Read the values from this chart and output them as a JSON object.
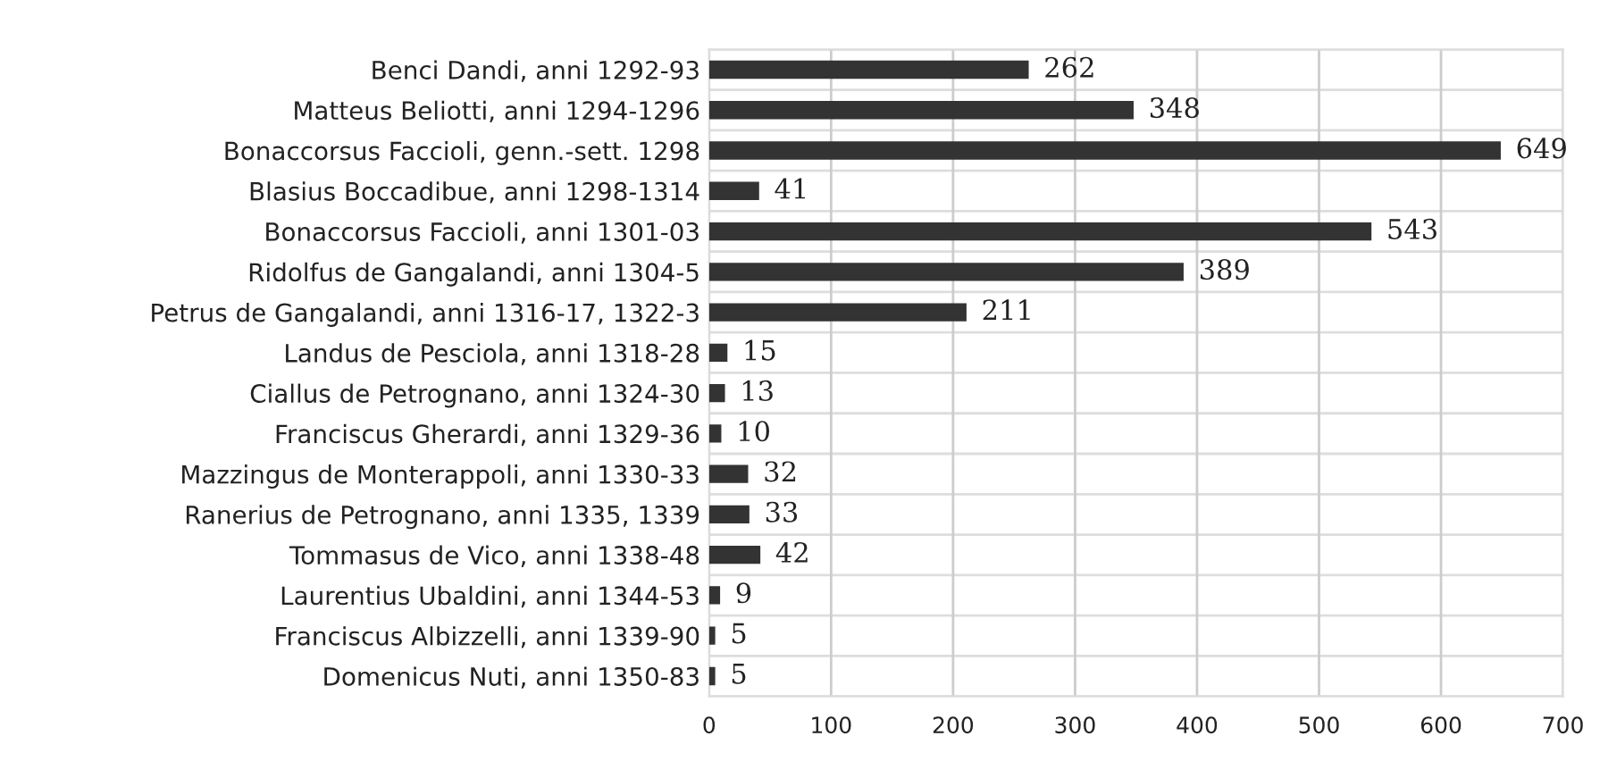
{
  "chart_data": {
    "type": "bar",
    "orientation": "horizontal",
    "categories": [
      "Benci Dandi, anni 1292-93",
      "Matteus Beliotti, anni 1294-1296",
      "Bonaccorsus Faccioli, genn.-sett. 1298",
      "Blasius Boccadibue, anni 1298-1314",
      "Bonaccorsus Faccioli, anni 1301-03",
      "Ridolfus de Gangalandi, anni 1304-5",
      "Petrus de Gangalandi, anni 1316-17, 1322-3",
      "Landus de Pesciola, anni 1318-28",
      "Ciallus de Petrognano, anni 1324-30",
      "Franciscus Gherardi, anni 1329-36",
      "Mazzingus de Monterappoli, anni 1330-33",
      "Ranerius de Petrognano, anni 1335, 1339",
      "Tommasus de Vico, anni 1338-48",
      "Laurentius Ubaldini, anni 1344-53",
      "Franciscus Albizzelli, anni 1339-90",
      "Domenicus Nuti, anni 1350-83"
    ],
    "values": [
      262,
      348,
      649,
      41,
      543,
      389,
      211,
      15,
      13,
      10,
      32,
      33,
      42,
      9,
      5,
      5
    ],
    "color": "#333333",
    "xlim": [
      0,
      700
    ],
    "xticks": [
      0,
      100,
      200,
      300,
      400,
      500,
      600,
      700
    ],
    "grid": true,
    "data_labels": true
  }
}
